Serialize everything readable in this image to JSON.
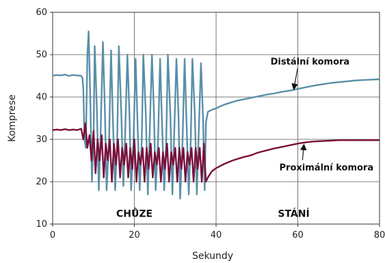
{
  "chart_data": {
    "type": "line",
    "xlabel": "Sekundy",
    "ylabel": "Komprese",
    "xlim": [
      0,
      80
    ],
    "ylim": [
      10,
      60
    ],
    "xticks": [
      "0",
      "20",
      "40",
      "60",
      "80"
    ],
    "yticks": [
      "10",
      "20",
      "30",
      "40",
      "50",
      "60"
    ],
    "grid": true,
    "legend": "none",
    "phase_labels": [
      {
        "text": "CHŮZE",
        "x": 20,
        "y": 12.5
      },
      {
        "text": "STÁNÍ",
        "x": 59,
        "y": 12.5
      }
    ],
    "annotations": [
      {
        "text": "Distální komora",
        "x": 63,
        "y": 48.5,
        "arrow_to": [
          59,
          41.8
        ]
      },
      {
        "text": "Proximální komora",
        "x": 67,
        "y": 23.5,
        "arrow_to": [
          61.5,
          28.8
        ]
      }
    ],
    "series": [
      {
        "name": "Distální komora",
        "color": "#5a8fa8",
        "x": [
          0,
          1,
          2,
          3,
          4,
          5,
          6,
          7,
          7.3,
          7.5,
          7.8,
          8.1,
          8.5,
          8.8,
          9.2,
          9.6,
          10.0,
          10.3,
          10.8,
          11.3,
          11.7,
          12.3,
          12.8,
          13.2,
          13.8,
          14.3,
          14.7,
          15.3,
          15.8,
          16.2,
          16.8,
          17.3,
          17.7,
          18.3,
          18.8,
          19.2,
          19.8,
          20.3,
          20.7,
          21.3,
          21.8,
          22.2,
          22.8,
          23.3,
          23.7,
          24.3,
          24.8,
          25.2,
          25.8,
          26.3,
          26.7,
          27.3,
          27.8,
          28.2,
          28.8,
          29.3,
          29.7,
          30.3,
          30.8,
          31.2,
          31.8,
          32.3,
          32.7,
          33.3,
          33.8,
          34.2,
          34.8,
          35.3,
          35.7,
          36.3,
          36.8,
          37.2,
          37.5,
          38,
          39,
          40,
          41,
          42,
          43,
          44,
          45,
          46,
          47,
          48,
          49,
          50,
          52,
          54,
          56,
          58,
          60,
          62,
          64,
          66,
          68,
          70,
          72,
          74,
          76,
          78,
          80
        ],
        "y": [
          45,
          45.2,
          45.1,
          45.3,
          45,
          45.2,
          45.1,
          45,
          44.5,
          42,
          30,
          28,
          50,
          55.5,
          40,
          20,
          30,
          52,
          38,
          18,
          30,
          53,
          36,
          18,
          30,
          51,
          36,
          18,
          30,
          52,
          36,
          19,
          30,
          50,
          36,
          18,
          30,
          49,
          36,
          18,
          30,
          50,
          36,
          17,
          30,
          50,
          36,
          18,
          30,
          49,
          36,
          18,
          30,
          50,
          36,
          17,
          30,
          49,
          36,
          16,
          30,
          49,
          36,
          17,
          30,
          49,
          36,
          17,
          30,
          48,
          35,
          18,
          34,
          36.5,
          37,
          37.3,
          37.8,
          38.2,
          38.5,
          38.8,
          39.1,
          39.3,
          39.5,
          39.7,
          39.9,
          40.1,
          40.5,
          40.8,
          41.2,
          41.5,
          41.9,
          42.3,
          42.7,
          43.0,
          43.3,
          43.5,
          43.7,
          43.9,
          44.0,
          44.1,
          44.2
        ]
      },
      {
        "name": "Proximální komora",
        "color": "#7a0f3a",
        "x": [
          0,
          1,
          2,
          3,
          4,
          5,
          6,
          7,
          7.5,
          8,
          8.5,
          9,
          9.5,
          10,
          10.5,
          11,
          11.5,
          12,
          12.5,
          13,
          13.5,
          14,
          14.5,
          15,
          15.5,
          16,
          16.5,
          17,
          17.5,
          18,
          18.5,
          19,
          19.5,
          20,
          20.5,
          21,
          21.5,
          22,
          22.5,
          23,
          23.5,
          24,
          24.5,
          25,
          25.5,
          26,
          26.5,
          27,
          27.5,
          28,
          28.5,
          29,
          29.5,
          30,
          30.5,
          31,
          31.5,
          32,
          32.5,
          33,
          33.5,
          34,
          34.5,
          35,
          35.5,
          36,
          36.5,
          37,
          37.5,
          38,
          39,
          40,
          41,
          42,
          43,
          44,
          45,
          46,
          47,
          48,
          49,
          50,
          52,
          54,
          56,
          58,
          60,
          62,
          64,
          66,
          68,
          70,
          72,
          74,
          76,
          78,
          80
        ],
        "y": [
          32.2,
          32.3,
          32.2,
          32.4,
          32.2,
          32.3,
          32.2,
          32.5,
          30,
          33.8,
          28,
          31,
          25,
          32,
          22,
          30,
          25,
          31,
          21,
          29,
          25,
          30,
          20,
          29,
          24,
          30,
          21,
          28,
          24,
          29,
          21,
          28,
          23,
          30,
          20,
          27,
          24,
          28,
          20,
          28,
          23,
          29,
          21,
          27,
          24,
          28,
          20,
          27,
          23,
          29,
          20,
          27,
          24,
          28,
          20,
          28,
          23,
          28,
          20,
          27,
          24,
          28,
          20,
          28,
          23,
          28,
          20,
          29,
          20,
          21,
          22.5,
          23.2,
          23.7,
          24.2,
          24.6,
          25,
          25.3,
          25.6,
          25.9,
          26.1,
          26.4,
          26.8,
          27.3,
          27.8,
          28.2,
          28.6,
          29.0,
          29.3,
          29.5,
          29.6,
          29.7,
          29.8,
          29.8,
          29.8,
          29.8,
          29.8,
          29.8
        ]
      }
    ]
  }
}
